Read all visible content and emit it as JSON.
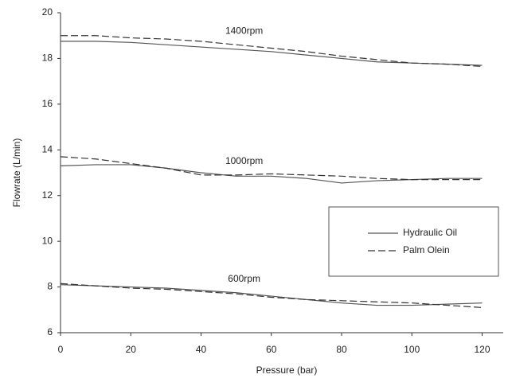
{
  "chart_data": {
    "type": "line",
    "x_label": "Pressure (bar)",
    "y_label": "Flowrate (L/min)",
    "x": [
      0,
      10,
      20,
      30,
      40,
      50,
      60,
      70,
      80,
      90,
      100,
      110,
      120
    ],
    "xlim": [
      0,
      126
    ],
    "xticks": [
      0,
      20,
      40,
      60,
      80,
      100,
      120
    ],
    "ylim": [
      6,
      20
    ],
    "yticks": [
      6,
      8,
      10,
      12,
      14,
      16,
      18,
      20
    ],
    "curve_labels": [
      "1400rpm",
      "1000rpm",
      "600rpm"
    ],
    "series": [
      {
        "name": "Hydraulic Oil",
        "color": "#555555",
        "dash": "solid",
        "curves": [
          [
            18.75,
            18.75,
            18.7,
            18.6,
            18.5,
            18.4,
            18.3,
            18.15,
            18.0,
            17.85,
            17.8,
            17.75,
            17.7
          ],
          [
            13.3,
            13.35,
            13.35,
            13.2,
            13.0,
            12.85,
            12.85,
            12.75,
            12.55,
            12.65,
            12.7,
            12.75,
            12.75
          ],
          [
            8.1,
            8.05,
            8.0,
            7.95,
            7.85,
            7.75,
            7.6,
            7.45,
            7.3,
            7.2,
            7.2,
            7.25,
            7.3
          ]
        ]
      },
      {
        "name": "Palm Olein",
        "color": "#333333",
        "dash": "dashed",
        "curves": [
          [
            19.0,
            19.0,
            18.9,
            18.85,
            18.75,
            18.6,
            18.45,
            18.3,
            18.1,
            17.95,
            17.8,
            17.75,
            17.65
          ],
          [
            13.7,
            13.6,
            13.4,
            13.2,
            12.9,
            12.9,
            12.95,
            12.9,
            12.85,
            12.75,
            12.7,
            12.7,
            12.7
          ],
          [
            8.15,
            8.05,
            7.95,
            7.9,
            7.8,
            7.7,
            7.55,
            7.45,
            7.4,
            7.35,
            7.3,
            7.2,
            7.1
          ]
        ]
      }
    ]
  }
}
